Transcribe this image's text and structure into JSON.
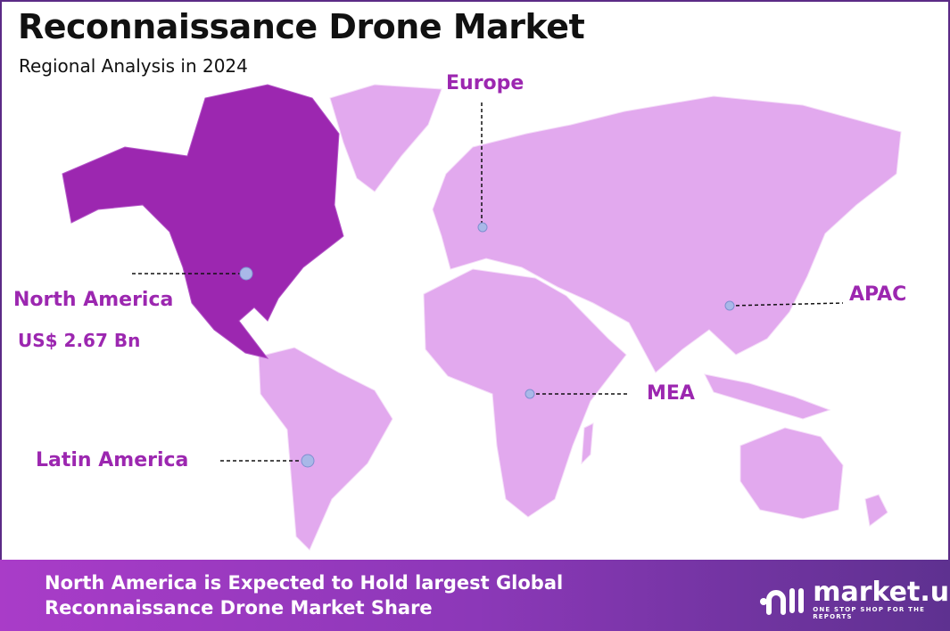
{
  "header": {
    "title": "Reconnaissance Drone Market",
    "subtitle": "Regional Analysis in 2024"
  },
  "colors": {
    "highlight_region": "#9c27b0",
    "other_regions": "#e2a9ee",
    "label": "#9c27b0",
    "marker": "#a9b8e8"
  },
  "regions": [
    {
      "name": "North America",
      "value": "US$ 2.67 Bn",
      "highlighted": true
    },
    {
      "name": "Europe",
      "highlighted": false
    },
    {
      "name": "APAC",
      "highlighted": false
    },
    {
      "name": "MEA",
      "highlighted": false
    },
    {
      "name": "Latin America",
      "highlighted": false
    }
  ],
  "footer": {
    "line1": "North America is Expected to Hold largest Global",
    "line2": "Reconnaissance Drone Market Share"
  },
  "logo": {
    "name": "market.us",
    "tagline": "ONE STOP SHOP FOR THE REPORTS"
  }
}
